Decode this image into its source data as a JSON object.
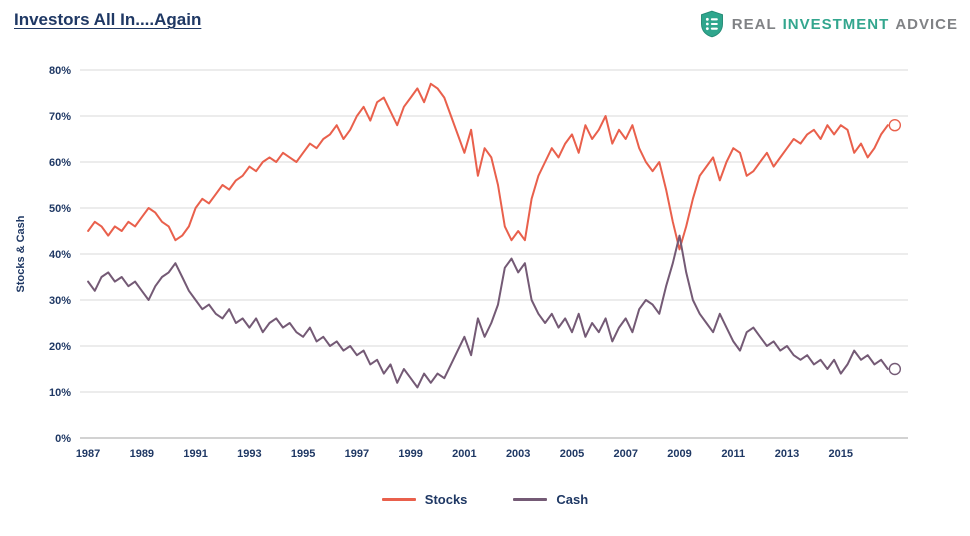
{
  "header": {
    "title": "Investors All In....Again",
    "logo": {
      "word1": "REAL",
      "word2": "INVESTMENT",
      "word3": "ADVICE",
      "accent_color": "#33A68E",
      "gray_color": "#808285"
    }
  },
  "chart_data": {
    "type": "line",
    "title": "Investors All In....Again",
    "xlabel": "",
    "ylabel": "Stocks & Cash",
    "ylim": [
      0,
      80
    ],
    "y_tick_labels": [
      "0%",
      "10%",
      "20%",
      "30%",
      "40%",
      "50%",
      "60%",
      "70%",
      "80%"
    ],
    "x_ticks": [
      1987,
      1989,
      1991,
      1993,
      1995,
      1997,
      1999,
      2001,
      2003,
      2005,
      2007,
      2009,
      2011,
      2013,
      2015
    ],
    "x_start": 1987,
    "x_step": 0.25,
    "grid": "horizontal",
    "legend_position": "bottom",
    "colors": {
      "text": "#1F3864",
      "gridline": "#D9D9D9",
      "axis": "#A6A6A6"
    },
    "series": [
      {
        "name": "Stocks",
        "color": "#E9604C",
        "end_marker_value": 68,
        "values": [
          45,
          47,
          46,
          44,
          46,
          45,
          47,
          46,
          48,
          50,
          49,
          47,
          46,
          43,
          44,
          46,
          50,
          52,
          51,
          53,
          55,
          54,
          56,
          57,
          59,
          58,
          60,
          61,
          60,
          62,
          61,
          60,
          62,
          64,
          63,
          65,
          66,
          68,
          65,
          67,
          70,
          72,
          69,
          73,
          74,
          71,
          68,
          72,
          74,
          76,
          73,
          77,
          76,
          74,
          70,
          66,
          62,
          67,
          57,
          63,
          61,
          55,
          46,
          43,
          45,
          43,
          52,
          57,
          60,
          63,
          61,
          64,
          66,
          62,
          68,
          65,
          67,
          70,
          64,
          67,
          65,
          68,
          63,
          60,
          58,
          60,
          54,
          47,
          41,
          46,
          52,
          57,
          59,
          61,
          56,
          60,
          63,
          62,
          57,
          58,
          60,
          62,
          59,
          61,
          63,
          65,
          64,
          66,
          67,
          65,
          68,
          66,
          68,
          67,
          62,
          64,
          61,
          63,
          66,
          68
        ]
      },
      {
        "name": "Cash",
        "color": "#745A75",
        "end_marker_value": 15,
        "values": [
          34,
          32,
          35,
          36,
          34,
          35,
          33,
          34,
          32,
          30,
          33,
          35,
          36,
          38,
          35,
          32,
          30,
          28,
          29,
          27,
          26,
          28,
          25,
          26,
          24,
          26,
          23,
          25,
          26,
          24,
          25,
          23,
          22,
          24,
          21,
          22,
          20,
          21,
          19,
          20,
          18,
          19,
          16,
          17,
          14,
          16,
          12,
          15,
          13,
          11,
          14,
          12,
          14,
          13,
          16,
          19,
          22,
          18,
          26,
          22,
          25,
          29,
          37,
          39,
          36,
          38,
          30,
          27,
          25,
          27,
          24,
          26,
          23,
          27,
          22,
          25,
          23,
          26,
          21,
          24,
          26,
          23,
          28,
          30,
          29,
          27,
          33,
          38,
          44,
          36,
          30,
          27,
          25,
          23,
          27,
          24,
          21,
          19,
          23,
          24,
          22,
          20,
          21,
          19,
          20,
          18,
          17,
          18,
          16,
          17,
          15,
          17,
          14,
          16,
          19,
          17,
          18,
          16,
          17,
          15
        ]
      }
    ]
  }
}
